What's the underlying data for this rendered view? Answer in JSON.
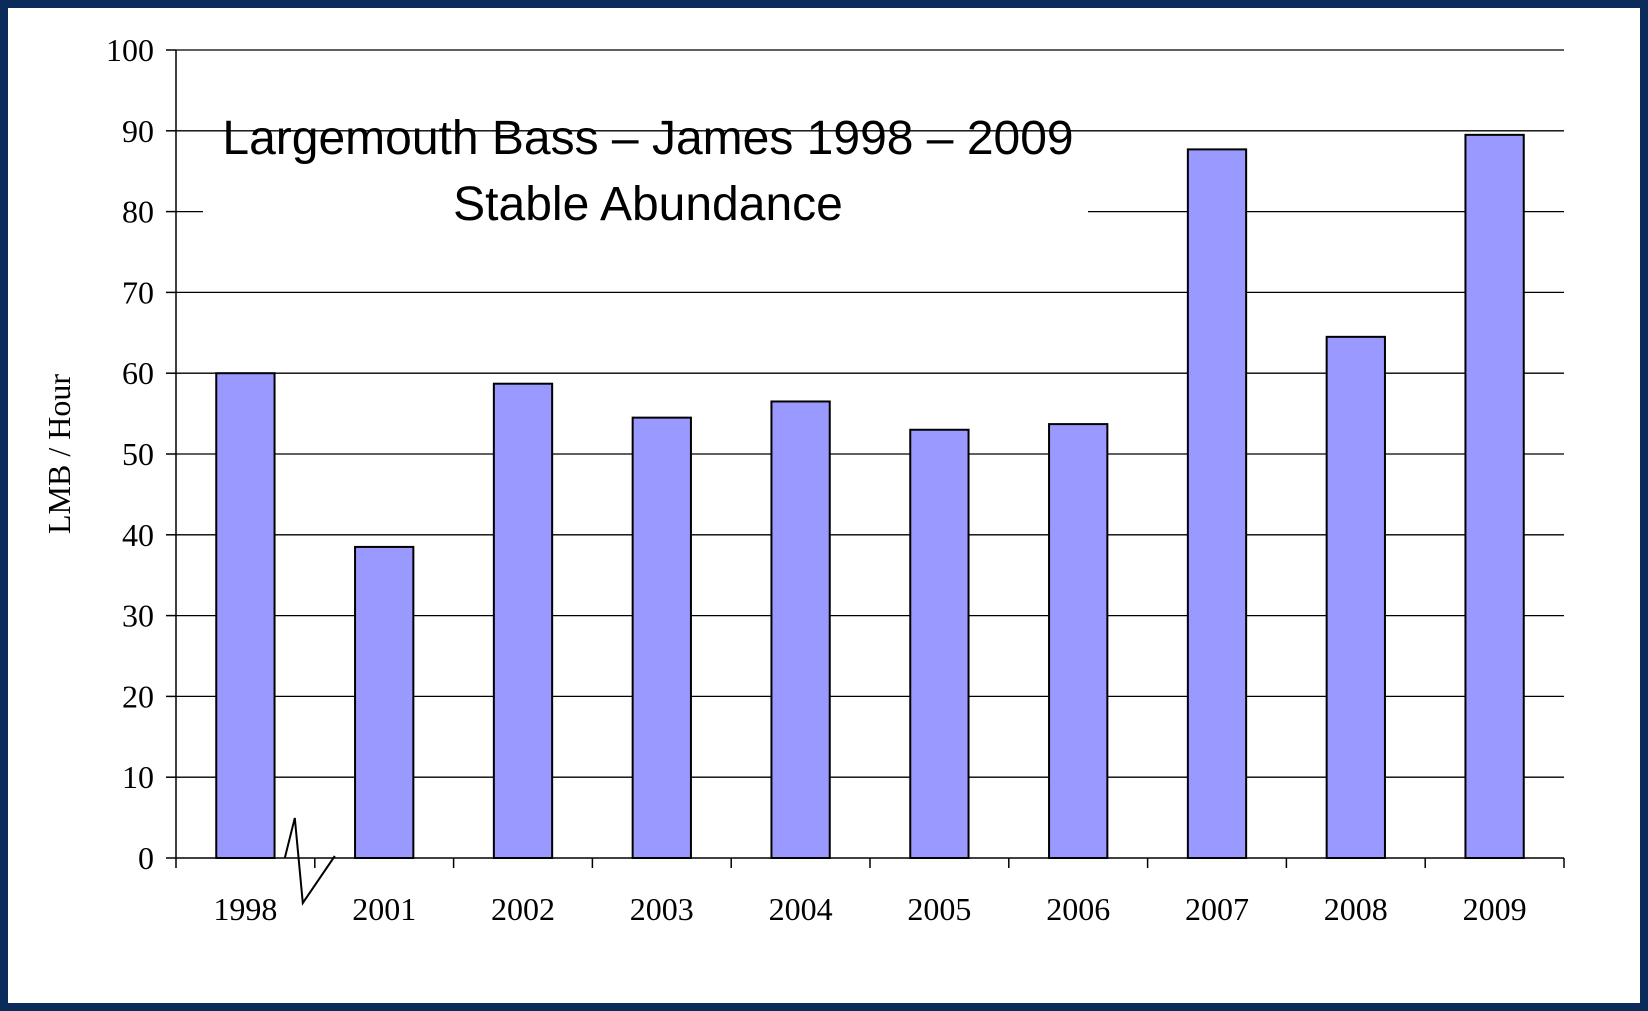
{
  "chart_data": {
    "type": "bar",
    "title": "Largemouth Bass – James 1998 – 2009",
    "subtitle": "Stable Abundance",
    "xlabel": "",
    "ylabel": "LMB / Hour",
    "categories": [
      "1998",
      "2001",
      "2002",
      "2003",
      "2004",
      "2005",
      "2006",
      "2007",
      "2008",
      "2009"
    ],
    "values": [
      60,
      38.5,
      58.7,
      54.5,
      56.5,
      53,
      53.7,
      87.7,
      64.5,
      89.5
    ],
    "ylim": [
      0,
      100
    ],
    "yticks": [
      0,
      10,
      20,
      30,
      40,
      50,
      60,
      70,
      80,
      90,
      100
    ],
    "grid": true,
    "axis_break_between": [
      "1998",
      "2001"
    ],
    "colors": {
      "bar_fill": "#9999ff",
      "bar_stroke": "#000000",
      "background": "#ffffff",
      "frame": "#0b2c5a"
    }
  }
}
